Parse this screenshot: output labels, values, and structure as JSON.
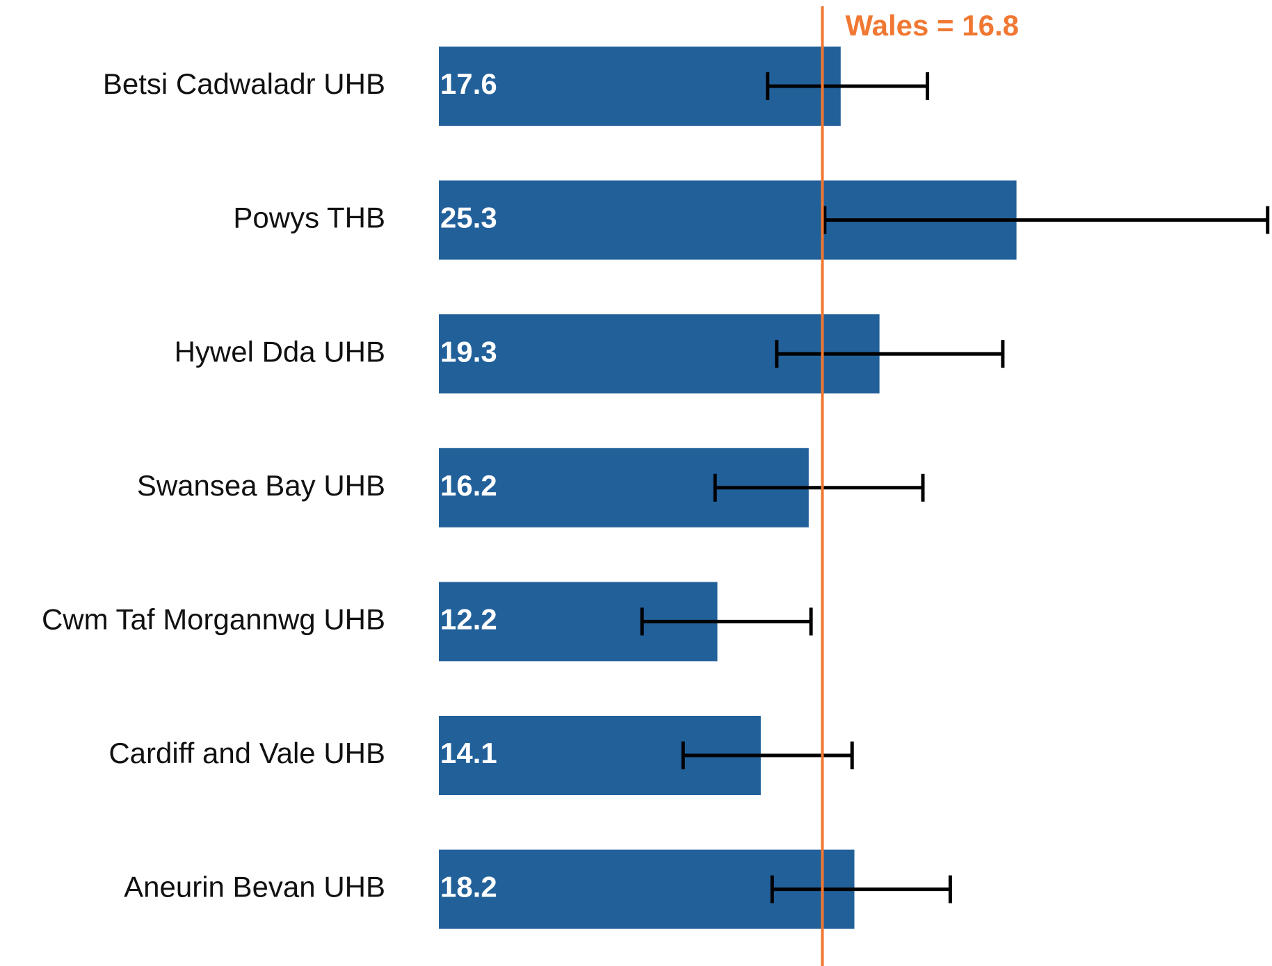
{
  "chart_data": {
    "type": "bar",
    "orientation": "horizontal",
    "categories": [
      "Betsi Cadwaladr UHB",
      "Powys THB",
      "Hywel Dda UHB",
      "Swansea Bay UHB",
      "Cwm Taf Morgannwg UHB",
      "Cardiff and Vale UHB",
      "Aneurin Bevan UHB"
    ],
    "values": [
      17.6,
      25.3,
      19.3,
      16.2,
      12.2,
      14.1,
      18.2
    ],
    "ci_lower": [
      14.4,
      16.9,
      14.8,
      12.1,
      8.9,
      10.7,
      14.6
    ],
    "ci_upper": [
      21.4,
      36.3,
      24.7,
      21.2,
      16.3,
      18.1,
      22.4
    ],
    "color": "#22609a",
    "error_color": "#000000",
    "reference": {
      "label": "Wales = 16.8",
      "value": 16.8,
      "color": "#f07833"
    },
    "xlim": [
      0,
      36.4
    ]
  }
}
